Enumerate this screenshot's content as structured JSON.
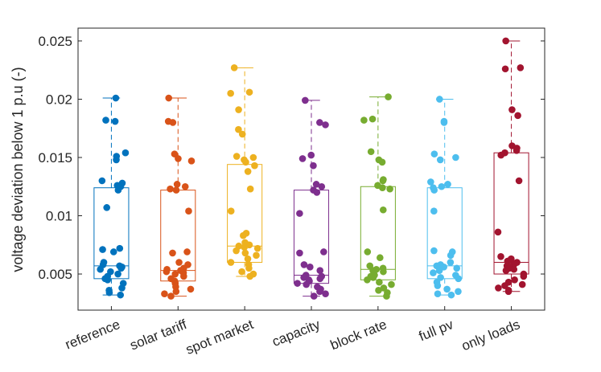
{
  "chart_data": {
    "type": "box",
    "title": "",
    "xlabel": "",
    "ylabel": "voltage deviation below 1 p.u (-)",
    "ylim": [
      0.0019,
      0.0261
    ],
    "yticks": [
      0.005,
      0.01,
      0.015,
      0.02,
      0.025
    ],
    "ytick_labels": [
      "0.005",
      "0.01",
      "0.015",
      "0.02",
      "0.025"
    ],
    "grid": false,
    "categories": [
      "reference",
      "solar tariff",
      "spot market",
      "capacity",
      "block rate",
      "full pv",
      "only loads"
    ],
    "series": [
      {
        "name": "reference",
        "color": "#0072BD",
        "box": {
          "min": 0.0032,
          "q1": 0.0046,
          "median": 0.0057,
          "q3": 0.0124,
          "max": 0.0201
        },
        "points": [
          0.0201,
          0.0182,
          0.0181,
          0.0154,
          0.0151,
          0.0148,
          0.013,
          0.0128,
          0.0126,
          0.0125,
          0.0122,
          0.0107,
          0.0072,
          0.0071,
          0.0069,
          0.006,
          0.0058,
          0.0057,
          0.0056,
          0.0055,
          0.0054,
          0.0052,
          0.005,
          0.0048,
          0.0046,
          0.0045,
          0.0042,
          0.0038,
          0.0036,
          0.0034,
          0.0032
        ]
      },
      {
        "name": "solar tariff",
        "color": "#D95319",
        "box": {
          "min": 0.0031,
          "q1": 0.0044,
          "median": 0.0053,
          "q3": 0.0122,
          "max": 0.0201
        },
        "points": [
          0.0201,
          0.0181,
          0.018,
          0.0153,
          0.0149,
          0.0147,
          0.0127,
          0.0125,
          0.0123,
          0.0122,
          0.0104,
          0.0069,
          0.0068,
          0.006,
          0.0058,
          0.0055,
          0.0054,
          0.0053,
          0.0052,
          0.0051,
          0.005,
          0.0048,
          0.0046,
          0.0044,
          0.0042,
          0.0039,
          0.0037,
          0.0035,
          0.0033,
          0.0031
        ]
      },
      {
        "name": "spot market",
        "color": "#EDB120",
        "box": {
          "min": 0.0048,
          "q1": 0.006,
          "median": 0.0074,
          "q3": 0.0144,
          "max": 0.0227
        },
        "points": [
          0.0227,
          0.0206,
          0.0205,
          0.0191,
          0.0174,
          0.017,
          0.0151,
          0.015,
          0.0148,
          0.0146,
          0.0143,
          0.0138,
          0.0123,
          0.0104,
          0.0085,
          0.0083,
          0.0077,
          0.0075,
          0.0074,
          0.0073,
          0.0072,
          0.007,
          0.0068,
          0.0066,
          0.0063,
          0.006,
          0.0058,
          0.0055,
          0.0052,
          0.005,
          0.0048
        ]
      },
      {
        "name": "capacity",
        "color": "#7E2F8E",
        "box": {
          "min": 0.0031,
          "q1": 0.0042,
          "median": 0.0049,
          "q3": 0.0122,
          "max": 0.0199
        },
        "points": [
          0.0199,
          0.018,
          0.0178,
          0.0152,
          0.0149,
          0.0143,
          0.0127,
          0.0125,
          0.0122,
          0.012,
          0.0102,
          0.0069,
          0.0068,
          0.0058,
          0.0056,
          0.0053,
          0.0049,
          0.0048,
          0.0047,
          0.0046,
          0.0045,
          0.0044,
          0.0042,
          0.0041,
          0.0039,
          0.0037,
          0.0035,
          0.0033,
          0.0031
        ]
      },
      {
        "name": "block rate",
        "color": "#77AC30",
        "box": {
          "min": 0.0031,
          "q1": 0.0045,
          "median": 0.0054,
          "q3": 0.0125,
          "max": 0.0202
        },
        "points": [
          0.0202,
          0.0183,
          0.0182,
          0.0155,
          0.0148,
          0.0146,
          0.0131,
          0.013,
          0.0126,
          0.0124,
          0.0123,
          0.0105,
          0.0069,
          0.0064,
          0.0057,
          0.0055,
          0.0054,
          0.0053,
          0.0052,
          0.005,
          0.0049,
          0.0048,
          0.0047,
          0.0045,
          0.0043,
          0.0041,
          0.0038,
          0.0036,
          0.0034,
          0.0031
        ]
      },
      {
        "name": "full pv",
        "color": "#4DBEEE",
        "box": {
          "min": 0.0032,
          "q1": 0.0046,
          "median": 0.0057,
          "q3": 0.0124,
          "max": 0.02
        },
        "points": [
          0.02,
          0.0181,
          0.018,
          0.0153,
          0.015,
          0.0148,
          0.0129,
          0.0127,
          0.0125,
          0.0124,
          0.0122,
          0.0104,
          0.007,
          0.0069,
          0.0066,
          0.006,
          0.0058,
          0.0057,
          0.0056,
          0.0055,
          0.0053,
          0.0051,
          0.0049,
          0.0047,
          0.0046,
          0.0043,
          0.004,
          0.0037,
          0.0035,
          0.0033,
          0.0032
        ]
      },
      {
        "name": "only loads",
        "color": "#A2142F",
        "box": {
          "min": 0.0035,
          "q1": 0.005,
          "median": 0.006,
          "q3": 0.0154,
          "max": 0.025
        },
        "points": [
          0.025,
          0.0227,
          0.0226,
          0.0191,
          0.0186,
          0.016,
          0.0158,
          0.0156,
          0.0154,
          0.0152,
          0.013,
          0.0086,
          0.0065,
          0.0063,
          0.0062,
          0.0061,
          0.006,
          0.0059,
          0.0058,
          0.0057,
          0.0056,
          0.0055,
          0.0054,
          0.0053,
          0.005,
          0.0048,
          0.0045,
          0.0043,
          0.0041,
          0.004,
          0.0038,
          0.0036,
          0.0035
        ]
      }
    ]
  }
}
